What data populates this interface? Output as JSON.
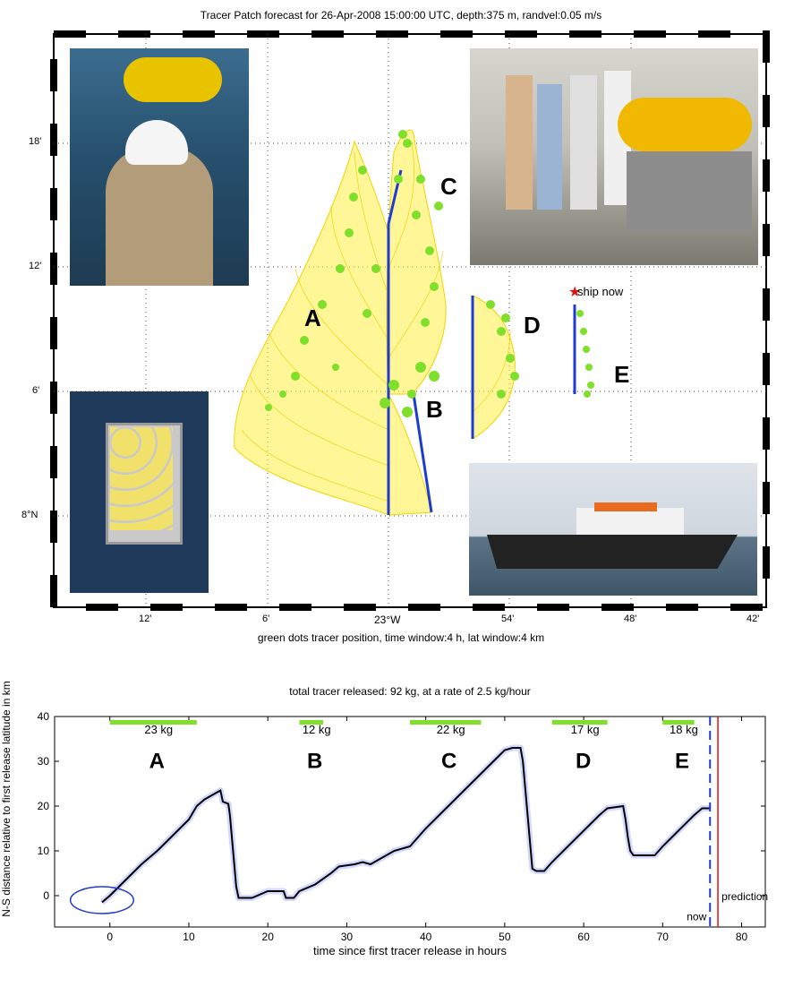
{
  "map": {
    "title": "Tracer Patch forecast for 26-Apr-2008 15:00:00 UTC, depth:375 m, randvel:0.05 m/s",
    "xlabel": "green dots tracer position, time window:4 h,  lat window:4 km",
    "lat_ticks": [
      "18'",
      "12'",
      "6'",
      "8°N"
    ],
    "lon_ticks": [
      "12'",
      "6'",
      "23°W",
      "54'",
      "48'",
      "42'"
    ],
    "patch_labels": [
      "A",
      "B",
      "C",
      "D",
      "E"
    ],
    "ship_label": "ship now",
    "photos": [
      {
        "name": "photo-sling-deployment",
        "desc": "crew member in helmet lowering tracer sled"
      },
      {
        "name": "photo-crew-on-deck",
        "desc": "crew standing by tracer sled on deck"
      },
      {
        "name": "photo-sled-in-water",
        "desc": "tracer sled with yellow floats in water"
      },
      {
        "name": "photo-research-vessel",
        "desc": "research vessel at sea"
      }
    ],
    "colors": {
      "tracer": "#7ee02a",
      "trajectory": "#ffee44",
      "ship_track": "#1f3ccf",
      "ship_star": "#e01010"
    }
  },
  "chart_data": {
    "type": "line",
    "title": "total tracer released: 92 kg, at a rate of   2.5 kg/hour",
    "xlabel": "time since first tracer release in hours",
    "ylabel": "N-S distance relative to first release latitude in km",
    "xlim": [
      -7,
      83
    ],
    "ylim": [
      -7,
      40
    ],
    "xticks": [
      0,
      10,
      20,
      30,
      40,
      50,
      60,
      70,
      80
    ],
    "yticks": [
      0,
      10,
      20,
      30,
      40
    ],
    "releases": [
      {
        "label": "A",
        "amount": "23 kg",
        "start": 0,
        "end": 11
      },
      {
        "label": "B",
        "amount": "12 kg",
        "start": 24,
        "end": 27
      },
      {
        "label": "C",
        "amount": "22 kg",
        "start": 38,
        "end": 47
      },
      {
        "label": "D",
        "amount": "17 kg",
        "start": 56,
        "end": 63
      },
      {
        "label": "E",
        "amount": "18 kg",
        "start": 70,
        "end": 74
      }
    ],
    "track": [
      [
        -1,
        -1.5
      ],
      [
        0,
        0
      ],
      [
        2,
        3.5
      ],
      [
        4,
        7
      ],
      [
        6,
        10
      ],
      [
        8,
        13.5
      ],
      [
        10,
        17
      ],
      [
        11,
        20
      ],
      [
        12,
        21.5
      ],
      [
        13,
        22.5
      ],
      [
        14,
        23.5
      ],
      [
        14.3,
        21
      ],
      [
        15,
        20.5
      ],
      [
        15.2,
        18
      ],
      [
        15.4,
        14
      ],
      [
        15.6,
        10
      ],
      [
        15.8,
        6
      ],
      [
        16,
        2
      ],
      [
        16.3,
        -0.5
      ],
      [
        18,
        -0.5
      ],
      [
        20,
        1
      ],
      [
        22,
        1
      ],
      [
        22.3,
        -0.5
      ],
      [
        23.3,
        -0.5
      ],
      [
        24,
        1
      ],
      [
        26,
        2.5
      ],
      [
        28,
        5
      ],
      [
        29,
        6.5
      ],
      [
        31,
        7
      ],
      [
        32,
        7.5
      ],
      [
        33,
        7
      ],
      [
        34,
        8
      ],
      [
        36,
        10
      ],
      [
        38,
        11
      ],
      [
        40,
        15
      ],
      [
        42,
        18.5
      ],
      [
        44,
        22
      ],
      [
        46,
        25.5
      ],
      [
        48,
        29
      ],
      [
        50,
        32.5
      ],
      [
        51,
        33
      ],
      [
        52,
        33
      ],
      [
        52.3,
        30
      ],
      [
        52.5,
        26
      ],
      [
        52.7,
        22
      ],
      [
        52.9,
        18
      ],
      [
        53.1,
        14
      ],
      [
        53.3,
        10
      ],
      [
        53.5,
        6
      ],
      [
        54,
        5.5
      ],
      [
        55,
        5.5
      ],
      [
        56,
        7.5
      ],
      [
        58,
        11
      ],
      [
        60,
        14.5
      ],
      [
        62,
        18
      ],
      [
        63,
        19.5
      ],
      [
        65,
        20
      ],
      [
        65.3,
        17
      ],
      [
        65.6,
        13
      ],
      [
        65.9,
        10
      ],
      [
        66.3,
        9
      ],
      [
        68,
        9
      ],
      [
        69,
        9
      ],
      [
        70,
        11
      ],
      [
        72,
        14.5
      ],
      [
        74,
        18
      ],
      [
        75,
        19.5
      ],
      [
        76,
        19.5
      ]
    ],
    "now_x": 76,
    "prediction_x": 77,
    "now_label": "now",
    "prediction_label": "prediction",
    "start_ellipse": {
      "cx": -1,
      "cy": -1,
      "rx": 4,
      "ry": 3
    }
  }
}
